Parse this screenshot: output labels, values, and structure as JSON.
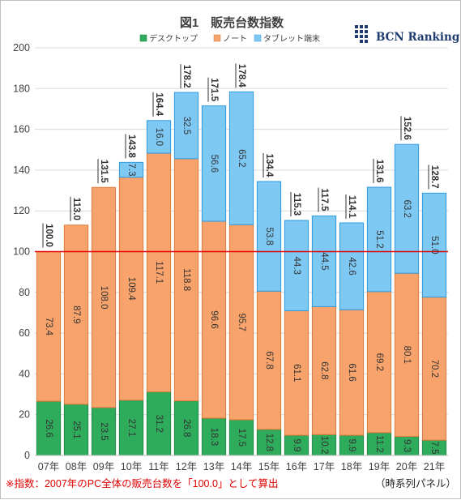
{
  "chart_data": {
    "type": "bar",
    "stacked": true,
    "title": "図1　販売台数指数",
    "categories": [
      "07年",
      "08年",
      "09年",
      "10年",
      "11年",
      "12年",
      "13年",
      "14年",
      "15年",
      "16年",
      "17年",
      "18年",
      "19年",
      "20年",
      "21年"
    ],
    "series": [
      {
        "name": "デスクトップ",
        "color": "#2eab5b",
        "values": [
          26.6,
          25.1,
          23.5,
          27.1,
          31.2,
          26.8,
          18.3,
          17.5,
          12.8,
          9.9,
          10.2,
          9.9,
          11.2,
          9.3,
          7.5
        ]
      },
      {
        "name": "ノート",
        "color": "#f7a36b",
        "values": [
          73.4,
          87.9,
          108.0,
          109.4,
          117.1,
          118.8,
          96.6,
          95.7,
          67.8,
          61.1,
          62.8,
          61.6,
          69.2,
          80.1,
          70.2
        ]
      },
      {
        "name": "タブレット端末",
        "color": "#7ec8f4",
        "values": [
          null,
          null,
          null,
          7.3,
          16.0,
          32.5,
          56.6,
          65.2,
          53.8,
          44.3,
          44.5,
          42.6,
          51.2,
          63.2,
          51.0
        ]
      }
    ],
    "totals": [
      100.0,
      113.0,
      131.5,
      143.8,
      164.4,
      178.2,
      171.5,
      178.4,
      134.4,
      115.3,
      117.5,
      114.1,
      131.6,
      152.6,
      128.7
    ],
    "ylim": [
      0,
      200
    ],
    "yticks": [
      0,
      20,
      40,
      60,
      80,
      100,
      120,
      140,
      160,
      180,
      200
    ],
    "reference_line": {
      "value": 100,
      "color": "#e00000"
    },
    "legend_position": "top-center",
    "grid": true
  },
  "brand": {
    "name": "BCN Ranking"
  },
  "footnote": {
    "left": "※指数：2007年のPC全体の販売台数を「100.0」として算出",
    "right": "（時系列パネル）"
  },
  "colors": {
    "desktop": "#2eab5b",
    "note": "#f7a36b",
    "tablet": "#7ec8f4",
    "reference": "#e00000"
  }
}
